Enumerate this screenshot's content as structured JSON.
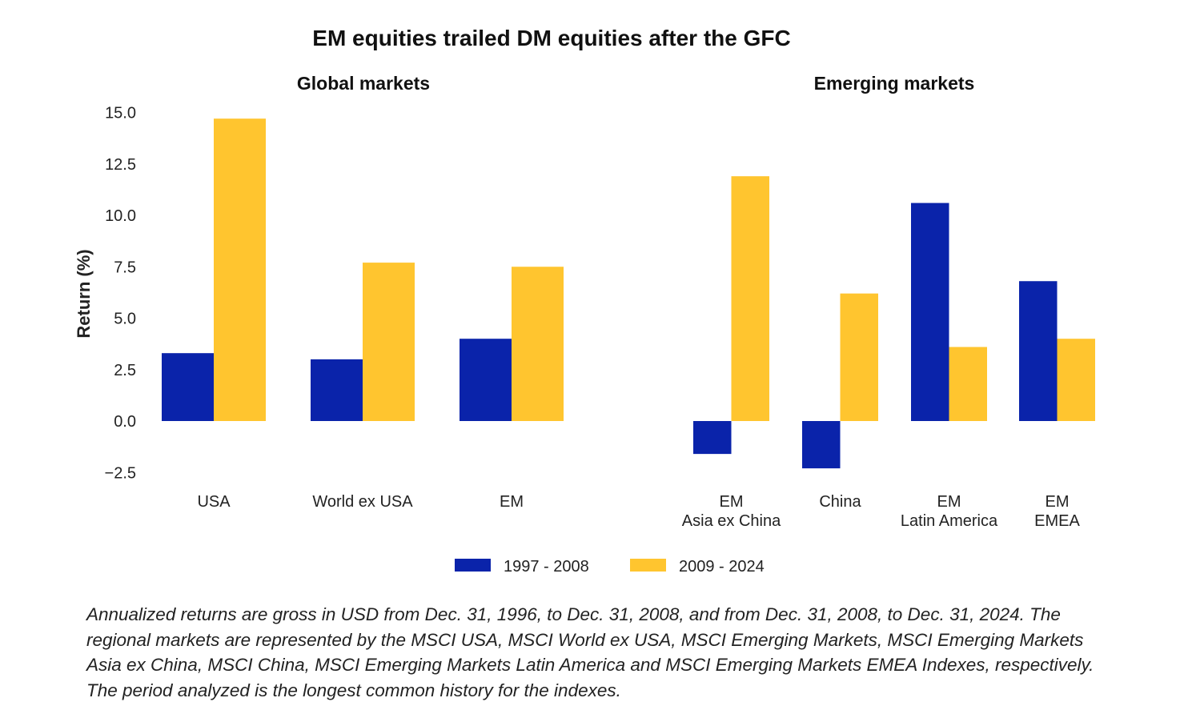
{
  "chart_data": {
    "type": "bar",
    "title": "EM equities trailed DM equities after the GFC",
    "ylabel": "Return (%)",
    "ylim": [
      -2.5,
      15.0
    ],
    "yticks": [
      "15.0",
      "12.5",
      "10.0",
      "7.5",
      "5.0",
      "2.5",
      "0.0",
      "−2.5"
    ],
    "ytick_values": [
      15.0,
      12.5,
      10.0,
      7.5,
      5.0,
      2.5,
      0.0,
      -2.5
    ],
    "legend": {
      "position": "bottom-center"
    },
    "grid": false,
    "series_names": [
      "1997 - 2008",
      "2009 - 2024"
    ],
    "colors": {
      "series1": "#0A23AA",
      "series2": "#FFC52F"
    },
    "panels": [
      {
        "title": "Global markets",
        "categories": [
          [
            "USA"
          ],
          [
            "World ex USA"
          ],
          [
            "EM"
          ]
        ],
        "series": [
          {
            "name": "1997 - 2008",
            "values": [
              3.3,
              3.0,
              4.0
            ]
          },
          {
            "name": "2009 - 2024",
            "values": [
              14.7,
              7.7,
              7.5
            ]
          }
        ]
      },
      {
        "title": "Emerging markets",
        "categories": [
          [
            "EM",
            "Asia ex China"
          ],
          [
            "China"
          ],
          [
            "EM",
            "Latin America"
          ],
          [
            "EM",
            "EMEA"
          ]
        ],
        "series": [
          {
            "name": "1997 - 2008",
            "values": [
              -1.6,
              -2.3,
              10.6,
              6.8
            ]
          },
          {
            "name": "2009 - 2024",
            "values": [
              11.9,
              6.2,
              3.6,
              4.0
            ]
          }
        ]
      }
    ]
  },
  "footnote": "Annualized returns are gross in USD from Dec. 31, 1996, to Dec. 31, 2008, and from Dec. 31, 2008, to Dec. 31, 2024. The regional markets are represented by the MSCI USA, MSCI World ex USA, MSCI Emerging Markets, MSCI Emerging Markets Asia ex China, MSCI China, MSCI Emerging Markets Latin America and MSCI Emerging Markets EMEA Indexes, respectively. The period analyzed is the longest common history for the indexes."
}
